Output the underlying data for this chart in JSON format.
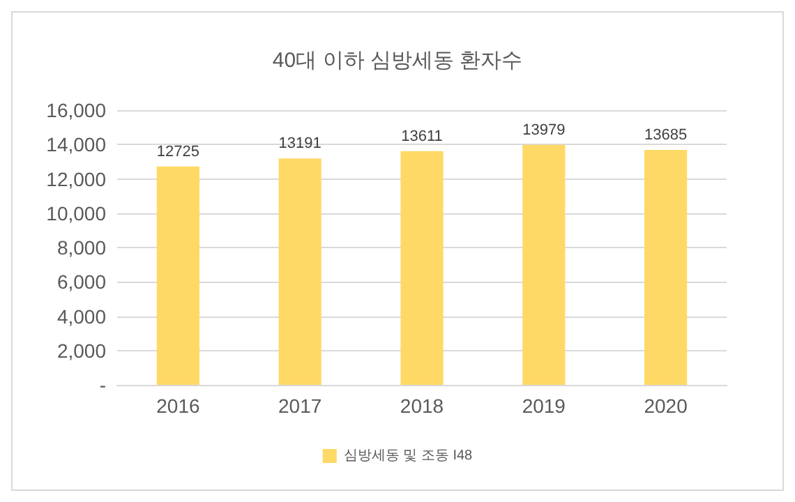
{
  "chart_data": {
    "type": "bar",
    "title": "40대 이하 심방세동 환자수",
    "categories": [
      "2016",
      "2017",
      "2018",
      "2019",
      "2020"
    ],
    "series": [
      {
        "name": "심방세동 및 조동 I48",
        "color": "#ffd966",
        "values": [
          12725,
          13191,
          13611,
          13979,
          13685
        ]
      }
    ],
    "ylim": [
      0,
      16000
    ],
    "yticks": [
      {
        "value": 0,
        "label": "-"
      },
      {
        "value": 2000,
        "label": "2,000"
      },
      {
        "value": 4000,
        "label": "4,000"
      },
      {
        "value": 6000,
        "label": "6,000"
      },
      {
        "value": 8000,
        "label": "8,000"
      },
      {
        "value": 10000,
        "label": "10,000"
      },
      {
        "value": 12000,
        "label": "12,000"
      },
      {
        "value": 14000,
        "label": "14,000"
      },
      {
        "value": 16000,
        "label": "16,000"
      }
    ],
    "grid": "y",
    "legend": "bottom",
    "data_labels": true
  }
}
